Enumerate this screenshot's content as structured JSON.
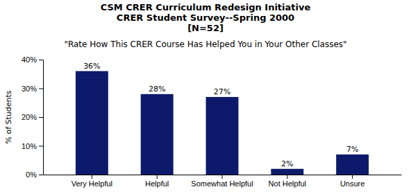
{
  "chart_data": {
    "type": "bar",
    "title": [
      "CSM CRER Curriculum Redesign Initiative",
      "CRER Student Survey--Spring 2000",
      "[N=52]"
    ],
    "subtitle": "\"Rate How This CRER Course Has Helped You in Your Other Classes\"",
    "ylabel": "% of Students",
    "categories": [
      "Very Helpful",
      "Helpful",
      "Somewhat Helpful",
      "Not Helpful",
      "Unsure"
    ],
    "values": [
      36,
      28,
      27,
      2,
      7
    ],
    "value_labels": [
      "36%",
      "28%",
      "27%",
      "2%",
      "7%"
    ],
    "data_labels": true,
    "color": "#0D1A6B",
    "ylim": [
      0,
      40
    ],
    "yticks": [
      {
        "value": 0,
        "label": "0%"
      },
      {
        "value": 10,
        "label": "10%"
      },
      {
        "value": 20,
        "label": "20%"
      },
      {
        "value": 30,
        "label": "30%"
      },
      {
        "value": 40,
        "label": "40%"
      }
    ],
    "grid": false
  }
}
